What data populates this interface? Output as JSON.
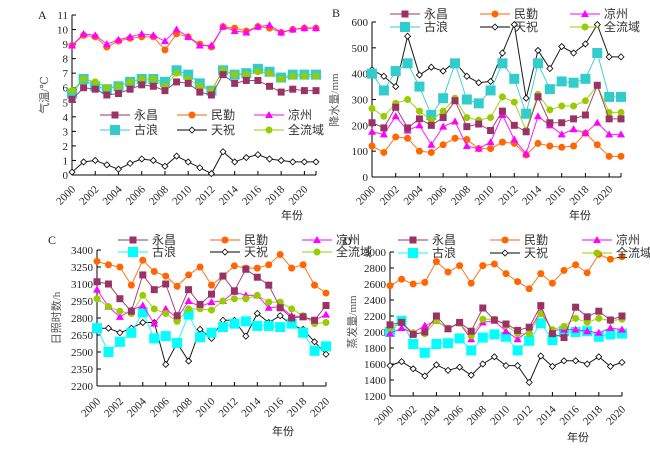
{
  "chart_data": [
    {
      "type": "line",
      "panel": "A",
      "title": "",
      "xlabel": "年份",
      "ylabel": "气温/℃",
      "ylim": [
        0,
        11
      ],
      "yticks": [
        0,
        1,
        2,
        3,
        4,
        5,
        6,
        7,
        8,
        9,
        10,
        11
      ],
      "xticks": [
        "2000",
        "2002",
        "2004",
        "2006",
        "2008",
        "2010",
        "2012",
        "2014",
        "2016",
        "2018",
        "2020"
      ],
      "x": [
        2000,
        2001,
        2002,
        2003,
        2004,
        2005,
        2006,
        2007,
        2008,
        2009,
        2010,
        2011,
        2012,
        2013,
        2014,
        2015,
        2016,
        2017,
        2018,
        2019,
        2020,
        2021
      ],
      "legend_position": "center",
      "series": [
        {
          "name": "永昌",
          "values": [
            5.2,
            6.0,
            5.9,
            5.5,
            5.6,
            5.9,
            6.2,
            6.1,
            5.8,
            6.4,
            6.3,
            5.7,
            5.5,
            6.9,
            6.3,
            6.5,
            6.5,
            6.1,
            5.7,
            5.9,
            5.8,
            5.8
          ]
        },
        {
          "name": "民勤",
          "values": [
            8.9,
            9.6,
            9.5,
            8.8,
            9.2,
            9.4,
            9.5,
            9.5,
            8.6,
            9.7,
            9.5,
            9.0,
            8.8,
            10.2,
            10.1,
            9.9,
            10.2,
            10.1,
            9.8,
            10.0,
            10.1,
            10.1
          ]
        },
        {
          "name": "凉州",
          "values": [
            8.9,
            9.7,
            9.6,
            9.0,
            9.3,
            9.5,
            9.7,
            9.6,
            9.2,
            10.0,
            9.5,
            8.9,
            8.9,
            10.2,
            9.9,
            9.8,
            10.2,
            10.3,
            9.8,
            10.0,
            10.1,
            10.1
          ]
        },
        {
          "name": "古浪",
          "values": [
            5.6,
            6.6,
            6.1,
            5.9,
            6.1,
            6.4,
            6.6,
            6.6,
            6.4,
            7.2,
            6.9,
            6.3,
            5.8,
            7.2,
            6.9,
            7.0,
            7.3,
            7.1,
            6.7,
            6.9,
            6.9,
            6.9
          ]
        },
        {
          "name": "天祝",
          "values": [
            0.2,
            0.9,
            1.0,
            0.7,
            0.4,
            0.8,
            1.1,
            1.0,
            0.6,
            1.3,
            0.9,
            0.5,
            0.1,
            1.6,
            0.9,
            1.2,
            1.4,
            1.1,
            1.0,
            0.9,
            0.9,
            0.9
          ]
        },
        {
          "name": "全流域",
          "values": [
            5.8,
            6.6,
            6.4,
            6.0,
            6.1,
            6.4,
            6.6,
            6.6,
            6.1,
            7.0,
            6.6,
            6.1,
            5.8,
            7.2,
            6.9,
            6.9,
            7.1,
            7.0,
            6.6,
            6.8,
            6.8,
            6.8
          ]
        }
      ]
    },
    {
      "type": "line",
      "panel": "B",
      "title": "",
      "xlabel": "年份",
      "ylabel": "降水量/mm",
      "ylim": [
        0,
        600
      ],
      "yticks": [
        0,
        100,
        200,
        300,
        400,
        500,
        600
      ],
      "xticks": [
        "2000",
        "2002",
        "2004",
        "2006",
        "2008",
        "2010",
        "2012",
        "2014",
        "2016",
        "2018",
        "2020"
      ],
      "x": [
        2000,
        2001,
        2002,
        2003,
        2004,
        2005,
        2006,
        2007,
        2008,
        2009,
        2010,
        2011,
        2012,
        2013,
        2014,
        2015,
        2016,
        2017,
        2018,
        2019,
        2020,
        2021
      ],
      "legend_position": "top",
      "series": [
        {
          "name": "永昌",
          "values": [
            210,
            190,
            270,
            190,
            225,
            200,
            230,
            295,
            195,
            205,
            180,
            255,
            200,
            175,
            310,
            210,
            210,
            225,
            240,
            355,
            225,
            225
          ]
        },
        {
          "name": "民勤",
          "values": [
            120,
            95,
            155,
            150,
            100,
            95,
            125,
            150,
            145,
            110,
            110,
            135,
            130,
            85,
            130,
            120,
            115,
            120,
            170,
            125,
            80,
            80
          ]
        },
        {
          "name": "凉州",
          "values": [
            175,
            165,
            235,
            180,
            200,
            125,
            195,
            215,
            120,
            110,
            135,
            240,
            145,
            90,
            235,
            200,
            165,
            185,
            170,
            210,
            165,
            165
          ]
        },
        {
          "name": "古浪",
          "values": [
            400,
            335,
            410,
            440,
            350,
            240,
            305,
            440,
            300,
            285,
            335,
            440,
            380,
            245,
            440,
            340,
            370,
            365,
            380,
            480,
            310,
            310
          ]
        },
        {
          "name": "天祝",
          "values": [
            415,
            390,
            350,
            545,
            395,
            425,
            410,
            445,
            390,
            365,
            370,
            480,
            590,
            305,
            490,
            420,
            505,
            480,
            515,
            590,
            465,
            465
          ]
        },
        {
          "name": "全流域",
          "values": [
            265,
            235,
            285,
            300,
            255,
            220,
            255,
            305,
            230,
            220,
            230,
            310,
            290,
            180,
            320,
            260,
            275,
            275,
            295,
            355,
            250,
            250
          ]
        }
      ]
    },
    {
      "type": "line",
      "panel": "C",
      "title": "",
      "xlabel": "年份",
      "ylabel": "日照时数/h",
      "ylim": [
        2200,
        3400
      ],
      "yticks": [
        2200,
        2350,
        2500,
        2650,
        2800,
        2950,
        3100,
        3250,
        3400
      ],
      "xticks": [
        "2000",
        "2002",
        "2004",
        "2006",
        "2008",
        "2010",
        "2012",
        "2014",
        "2016",
        "2018",
        "2020"
      ],
      "x": [
        2000,
        2001,
        2002,
        2003,
        2004,
        2005,
        2006,
        2007,
        2008,
        2009,
        2010,
        2011,
        2012,
        2013,
        2014,
        2015,
        2016,
        2017,
        2018,
        2019,
        2020
      ],
      "legend_position": "top",
      "series": [
        {
          "name": "永昌",
          "values": [
            3120,
            3100,
            2970,
            2860,
            3180,
            3050,
            3100,
            2820,
            3050,
            2920,
            3010,
            3170,
            3040,
            3230,
            3160,
            3090,
            2890,
            2800,
            2810,
            2780,
            2910
          ]
        },
        {
          "name": "民勤",
          "values": [
            3300,
            3270,
            3250,
            3090,
            3310,
            3210,
            3170,
            3080,
            3180,
            3250,
            3090,
            3170,
            3260,
            3240,
            3240,
            3270,
            3360,
            3240,
            3270,
            3090,
            3020
          ]
        },
        {
          "name": "凉州",
          "values": [
            3050,
            2900,
            2810,
            2870,
            2910,
            2750,
            2880,
            2800,
            2950,
            2900,
            2940,
            2950,
            3030,
            3000,
            3000,
            2890,
            2900,
            2820,
            2810,
            2780,
            2830
          ]
        },
        {
          "name": "古浪",
          "values": [
            2710,
            2500,
            2590,
            2670,
            2850,
            2620,
            2640,
            2580,
            2830,
            2630,
            2670,
            2720,
            2750,
            2770,
            2730,
            2730,
            2720,
            2750,
            2670,
            2510,
            2550
          ]
        },
        {
          "name": "天祝",
          "values": [
            2710,
            2710,
            2670,
            2710,
            2760,
            2760,
            2390,
            2580,
            2420,
            2700,
            2620,
            2780,
            2780,
            2640,
            2840,
            2760,
            2820,
            2740,
            2700,
            2590,
            2480
          ]
        },
        {
          "name": "全流域",
          "values": [
            2970,
            2900,
            2860,
            2840,
            3000,
            2880,
            2840,
            2770,
            2880,
            2880,
            2870,
            2950,
            2970,
            2970,
            3000,
            2940,
            2940,
            2880,
            2820,
            2750,
            2760
          ]
        }
      ]
    },
    {
      "type": "line",
      "panel": "D",
      "title": "",
      "xlabel": "年份",
      "ylabel": "蒸发量/mm",
      "ylim": [
        1200,
        3000
      ],
      "yticks": [
        1200,
        1400,
        1600,
        1800,
        2000,
        2200,
        2400,
        2600,
        2800,
        3000
      ],
      "xticks": [
        "2000",
        "2002",
        "2004",
        "2006",
        "2008",
        "2010",
        "2012",
        "2014",
        "2016",
        "2018",
        "2020"
      ],
      "x": [
        2000,
        2001,
        2002,
        2003,
        2004,
        2005,
        2006,
        2007,
        2008,
        2009,
        2010,
        2011,
        2012,
        2013,
        2014,
        2015,
        2016,
        2017,
        2018,
        2019,
        2020
      ],
      "legend_position": "top",
      "series": [
        {
          "name": "永昌",
          "values": [
            2090,
            2120,
            1970,
            2000,
            2200,
            2040,
            2120,
            2010,
            2300,
            2150,
            2100,
            2020,
            2060,
            2330,
            1980,
            1930,
            2310,
            2190,
            2260,
            2150,
            2200
          ]
        },
        {
          "name": "民勤",
          "values": [
            2580,
            2660,
            2600,
            2620,
            2880,
            2750,
            2830,
            2610,
            2830,
            2850,
            2730,
            2630,
            2540,
            2730,
            2610,
            2770,
            2840,
            2740,
            2970,
            2910,
            2940
          ]
        },
        {
          "name": "凉州",
          "values": [
            1980,
            2050,
            1990,
            2080,
            2140,
            2040,
            2110,
            1910,
            2120,
            2140,
            2010,
            1910,
            2020,
            2260,
            2020,
            2030,
            2030,
            2010,
            1990,
            2050,
            2030
          ]
        },
        {
          "name": "古浪",
          "values": [
            2000,
            2140,
            1850,
            1740,
            1850,
            1860,
            1920,
            1770,
            1930,
            1970,
            1940,
            1770,
            1890,
            2110,
            1900,
            2010,
            2000,
            2010,
            1940,
            1970,
            1980
          ]
        },
        {
          "name": "天祝",
          "values": [
            1580,
            1630,
            1540,
            1450,
            1590,
            1520,
            1560,
            1460,
            1600,
            1690,
            1580,
            1580,
            1370,
            1700,
            1570,
            1640,
            1640,
            1600,
            1690,
            1570,
            1620
          ]
        },
        {
          "name": "全流域",
          "values": [
            2050,
            2120,
            1990,
            1980,
            2140,
            2040,
            2110,
            1950,
            2160,
            2160,
            2080,
            1980,
            1980,
            2230,
            2030,
            2070,
            2170,
            2120,
            2170,
            2140,
            2160
          ]
        }
      ]
    }
  ],
  "series_styles": {
    "永昌": {
      "color": "#993366",
      "marker": "square"
    },
    "民勤": {
      "color": "#ff6600",
      "marker": "circle"
    },
    "凉州": {
      "color": "#ff00ff",
      "marker": "triangle"
    },
    "古浪": {
      "color": "#33cccc",
      "marker": "bigsquare"
    },
    "天祝": {
      "color": "#000000",
      "marker": "diamond-open"
    },
    "全流域": {
      "color": "#99cc00",
      "marker": "circle"
    }
  },
  "series_styles_alt": {
    "古浪": {
      "color": "#00ffff"
    }
  }
}
